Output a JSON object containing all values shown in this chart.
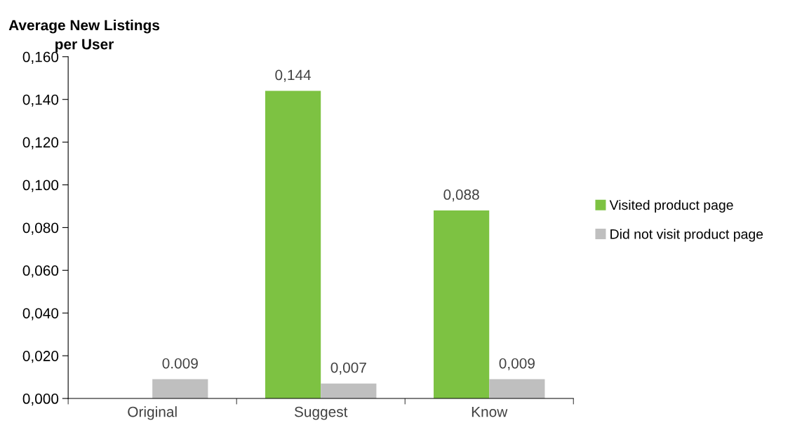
{
  "chart_data": {
    "type": "bar",
    "ylabel": "Average New Listings per User",
    "categories": [
      "Original",
      "Suggest",
      "Know"
    ],
    "series": [
      {
        "name": "Visited product page",
        "color": "#7dc242",
        "values": [
          null,
          0.144,
          0.088
        ],
        "value_labels": [
          null,
          "0,144",
          "0,088"
        ]
      },
      {
        "name": "Did not visit product page",
        "color": "#bfbfbf",
        "values": [
          0.009,
          0.007,
          0.009
        ],
        "value_labels": [
          "0.009",
          "0,007",
          "0,009"
        ]
      }
    ],
    "ylim": [
      0,
      0.16
    ],
    "yticks": [
      {
        "value": 0,
        "label": "0,000"
      },
      {
        "value": 0.02,
        "label": "0,020"
      },
      {
        "value": 0.04,
        "label": "0,040"
      },
      {
        "value": 0.06,
        "label": "0,060"
      },
      {
        "value": 0.08,
        "label": "0,080"
      },
      {
        "value": 0.1,
        "label": "0,100"
      },
      {
        "value": 0.12,
        "label": "0,120"
      },
      {
        "value": 0.14,
        "label": "0,140"
      },
      {
        "value": 0.16,
        "label": "0,160"
      }
    ],
    "grid": false,
    "legend": "right"
  }
}
